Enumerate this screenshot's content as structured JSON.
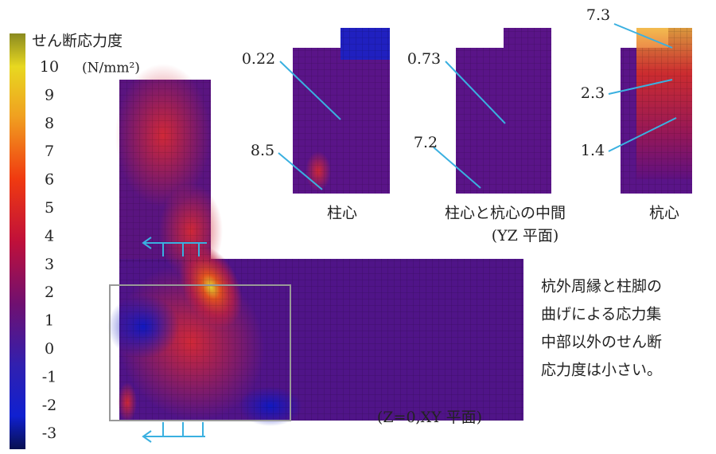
{
  "legend": {
    "title": "せん断応力度",
    "unit": "(N/mm²)",
    "ticks": [
      "10",
      "9",
      "8",
      "7",
      "6",
      "5",
      "4",
      "3",
      "2",
      "1",
      "0",
      "-1",
      "-2",
      "-3"
    ]
  },
  "panels": [
    {
      "label": "柱心",
      "annotations": [
        "0.22",
        "8.5"
      ]
    },
    {
      "label": "柱心と杭心の中間",
      "annotations": [
        "0.73",
        "7.2"
      ]
    },
    {
      "label": "杭心",
      "annotations": [
        "7.3",
        "2.3",
        "1.4"
      ]
    }
  ],
  "yz_plane": "(YZ 平面)",
  "xy_plane": "(Z=0,XY 平面)",
  "note": [
    "杭外周縁と柱脚の",
    "曲げによる応力集",
    "中部以外のせん断",
    "応力度は小さい。"
  ]
}
